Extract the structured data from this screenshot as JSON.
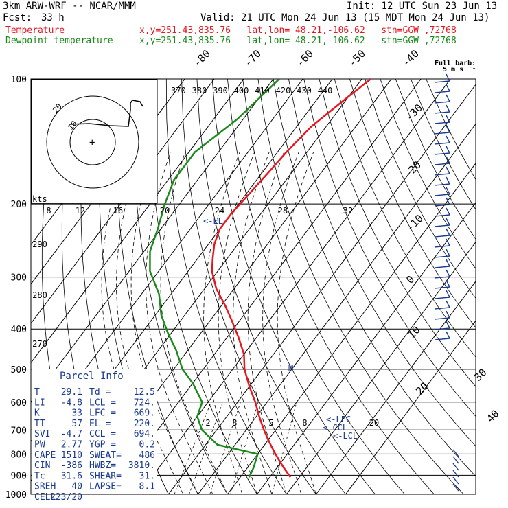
{
  "header": {
    "model": "3km ARW-WRF -- NCAR/MMM",
    "init": "Init: 12 UTC Sun 23 Jun 13",
    "fcst_label": "Fcst:",
    "fcst_value": "33 h",
    "valid": "Valid: 21 UTC Mon 24 Jun 13 (15 MDT Mon 24 Jun 13)"
  },
  "legend": [
    {
      "name": "Temperature",
      "info": "x,y=251.43,835.76   lat,lon= 48.21,-106.62   stn=GGW ,72768",
      "color": "#e8141e"
    },
    {
      "name": "Dewpoint temperature",
      "info": "x,y=251.43,835.76   lat,lon= 48.21,-106.62   stn=GGW ,72768",
      "color": "#1a8a1a"
    }
  ],
  "barb_legend": {
    "title": "Full barb:",
    "value": "5 m s",
    "superscript": "-1"
  },
  "hodograph": {
    "kts_label": "kts",
    "ring_labels": [
      "20",
      "10"
    ]
  },
  "parcel_info": {
    "title": "Parcel Info",
    "rows": [
      {
        "l1": "T",
        "v1": "29.1",
        "l2": "Td =",
        "v2": "12.5"
      },
      {
        "l1": "LI",
        "v1": "-4.8",
        "l2": "LCL =",
        "v2": "724."
      },
      {
        "l1": "K",
        "v1": "33",
        "l2": "LFC =",
        "v2": "669."
      },
      {
        "l1": "TT",
        "v1": "57",
        "l2": "EL =",
        "v2": "220."
      },
      {
        "l1": "SVI",
        "v1": "-4.7",
        "l2": "CCL =",
        "v2": "694."
      },
      {
        "l1": "PW",
        "v1": "2.77",
        "l2": "YGP =",
        "v2": "0.2"
      },
      {
        "l1": "CAPE",
        "v1": "1510",
        "l2": "SWEAT=",
        "v2": "486"
      },
      {
        "l1": "CIN",
        "v1": "-386",
        "l2": "HWBZ=",
        "v2": "3810."
      },
      {
        "l1": "Tc",
        "v1": "31.6",
        "l2": "SHEAR=",
        "v2": "31."
      },
      {
        "l1": "SREH",
        "v1": "40",
        "l2": "LAPSE=",
        "v2": "8.1"
      },
      {
        "l1": "CELL",
        "v1": "223/20",
        "l2": "",
        "v2": ""
      }
    ]
  },
  "chart_data": {
    "type": "line",
    "title": "",
    "ylabel": "",
    "xlabel": "",
    "y_scale": "log",
    "pressure_ticks": [
      "100",
      "200",
      "300",
      "400",
      "500",
      "600",
      "700",
      "800",
      "900",
      "1000"
    ],
    "isotherm_labels": [
      "-80",
      "-70",
      "-60",
      "-50",
      "-40",
      "-30",
      "-20",
      "-10",
      "0",
      "10",
      "20",
      "30",
      "40"
    ],
    "theta_labels": [
      "370",
      "380",
      "390",
      "400",
      "410",
      "420",
      "430",
      "440"
    ],
    "theta_left_labels": [
      "290",
      "280",
      "270"
    ],
    "wind_scale_labels": [
      "8",
      "12",
      "16",
      "20",
      "24",
      "28",
      "32"
    ],
    "mixing_ratio_labels": [
      "2",
      "3",
      "5",
      "8",
      "20"
    ],
    "markers": [
      "LFC",
      "CCL",
      "LCL",
      "EL",
      "M"
    ],
    "series": [
      {
        "name": "Temperature",
        "color": "#e8141e",
        "points": [
          [
            100,
            -47
          ],
          [
            110,
            -50
          ],
          [
            130,
            -55
          ],
          [
            150,
            -57
          ],
          [
            170,
            -58
          ],
          [
            190,
            -59
          ],
          [
            210,
            -60
          ],
          [
            230,
            -60
          ],
          [
            250,
            -58
          ],
          [
            270,
            -55
          ],
          [
            290,
            -52
          ],
          [
            320,
            -46
          ],
          [
            350,
            -39
          ],
          [
            380,
            -33
          ],
          [
            420,
            -26
          ],
          [
            460,
            -20
          ],
          [
            500,
            -16
          ],
          [
            550,
            -10
          ],
          [
            600,
            -4
          ],
          [
            650,
            1
          ],
          [
            700,
            6
          ],
          [
            740,
            10
          ],
          [
            800,
            16
          ],
          [
            860,
            22
          ],
          [
            910,
            27
          ]
        ]
      },
      {
        "name": "Dewpoint temperature",
        "color": "#1a8a1a",
        "points": [
          [
            100,
            -78
          ],
          [
            125,
            -82
          ],
          [
            150,
            -88
          ],
          [
            175,
            -88
          ],
          [
            200,
            -85
          ],
          [
            230,
            -81
          ],
          [
            260,
            -78
          ],
          [
            290,
            -73
          ],
          [
            330,
            -64
          ],
          [
            370,
            -58
          ],
          [
            410,
            -51
          ],
          [
            450,
            -44
          ],
          [
            500,
            -37
          ],
          [
            540,
            -30
          ],
          [
            600,
            -22
          ],
          [
            650,
            -20
          ],
          [
            700,
            -15
          ],
          [
            760,
            -6
          ],
          [
            800,
            10
          ],
          [
            860,
            12
          ],
          [
            910,
            13
          ]
        ]
      }
    ]
  }
}
